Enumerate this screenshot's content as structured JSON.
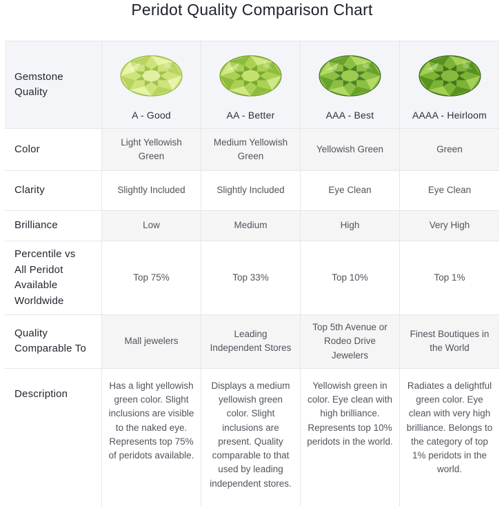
{
  "title": "Peridot Quality Comparison Chart",
  "colors": {
    "title_color": "#1d212a",
    "label_color": "#21262e",
    "cell_color": "#4f545c",
    "border": "#e4e6e9",
    "header_tint": "#f3f5f8",
    "row_tint": "#f5f5f6"
  },
  "table": {
    "row_labels": [
      "Gemstone Quality",
      "Color",
      "Clarity",
      "Brilliance",
      "Percentile vs All Peridot Available Worldwide",
      "Quality Comparable To",
      "Description"
    ],
    "grades": [
      {
        "label": "A - Good",
        "gem_icon": "peridot-gem-light-yellowish-green",
        "gem": {
          "base": "#cfe37b",
          "light": "#e9f4ad",
          "mid": "#b5d25f",
          "dark": "#95b944",
          "table": "#e0efa0"
        },
        "color": "Light Yellowish Green",
        "clarity": "Slightly Included",
        "brilliance": "Low",
        "percentile": "Top 75%",
        "comparable": "Mall jewelers",
        "description": "Has a light yellowish green color. Slight inclusions are visible to the naked eye. Represents top 75% of peridots available."
      },
      {
        "label": "AA - Better",
        "gem_icon": "peridot-gem-medium-yellowish-green",
        "gem": {
          "base": "#abd153",
          "light": "#d3e98a",
          "mid": "#8cb93a",
          "dark": "#6f9d2d",
          "table": "#c4e170"
        },
        "color": "Medium Yellowish Green",
        "clarity": "Slightly Included",
        "brilliance": "Medium",
        "percentile": "Top 33%",
        "comparable": "Leading Independent Stores",
        "description": "Displays a medium yellowish green color. Slight inclusions are present. Quality comparable to that used by leading independent stores."
      },
      {
        "label": "AAA - Best",
        "gem_icon": "peridot-gem-yellowish-green",
        "gem": {
          "base": "#8cc044",
          "light": "#b6db67",
          "mid": "#66a02a",
          "dark": "#3f7020",
          "table": "#9ccb50"
        },
        "color": "Yellowish Green",
        "clarity": "Eye Clean",
        "brilliance": "High",
        "percentile": "Top 10%",
        "comparable": "Top 5th Avenue or Rodeo Drive Jewelers",
        "description": "Yellowish green in color. Eye clean with high brilliance. Represents top 10% peridots in the world."
      },
      {
        "label": "AAAA - Heirloom",
        "gem_icon": "peridot-gem-green",
        "gem": {
          "base": "#7cb335",
          "light": "#a8d258",
          "mid": "#578f1f",
          "dark": "#386516",
          "table": "#85bb3c"
        },
        "color": "Green",
        "clarity": "Eye Clean",
        "brilliance": "Very High",
        "percentile": "Top 1%",
        "comparable": "Finest Boutiques in the World",
        "description": "Radiates a delightful green color. Eye clean with very high brilliance. Belongs to the category of top 1% peridots in the world."
      }
    ]
  }
}
